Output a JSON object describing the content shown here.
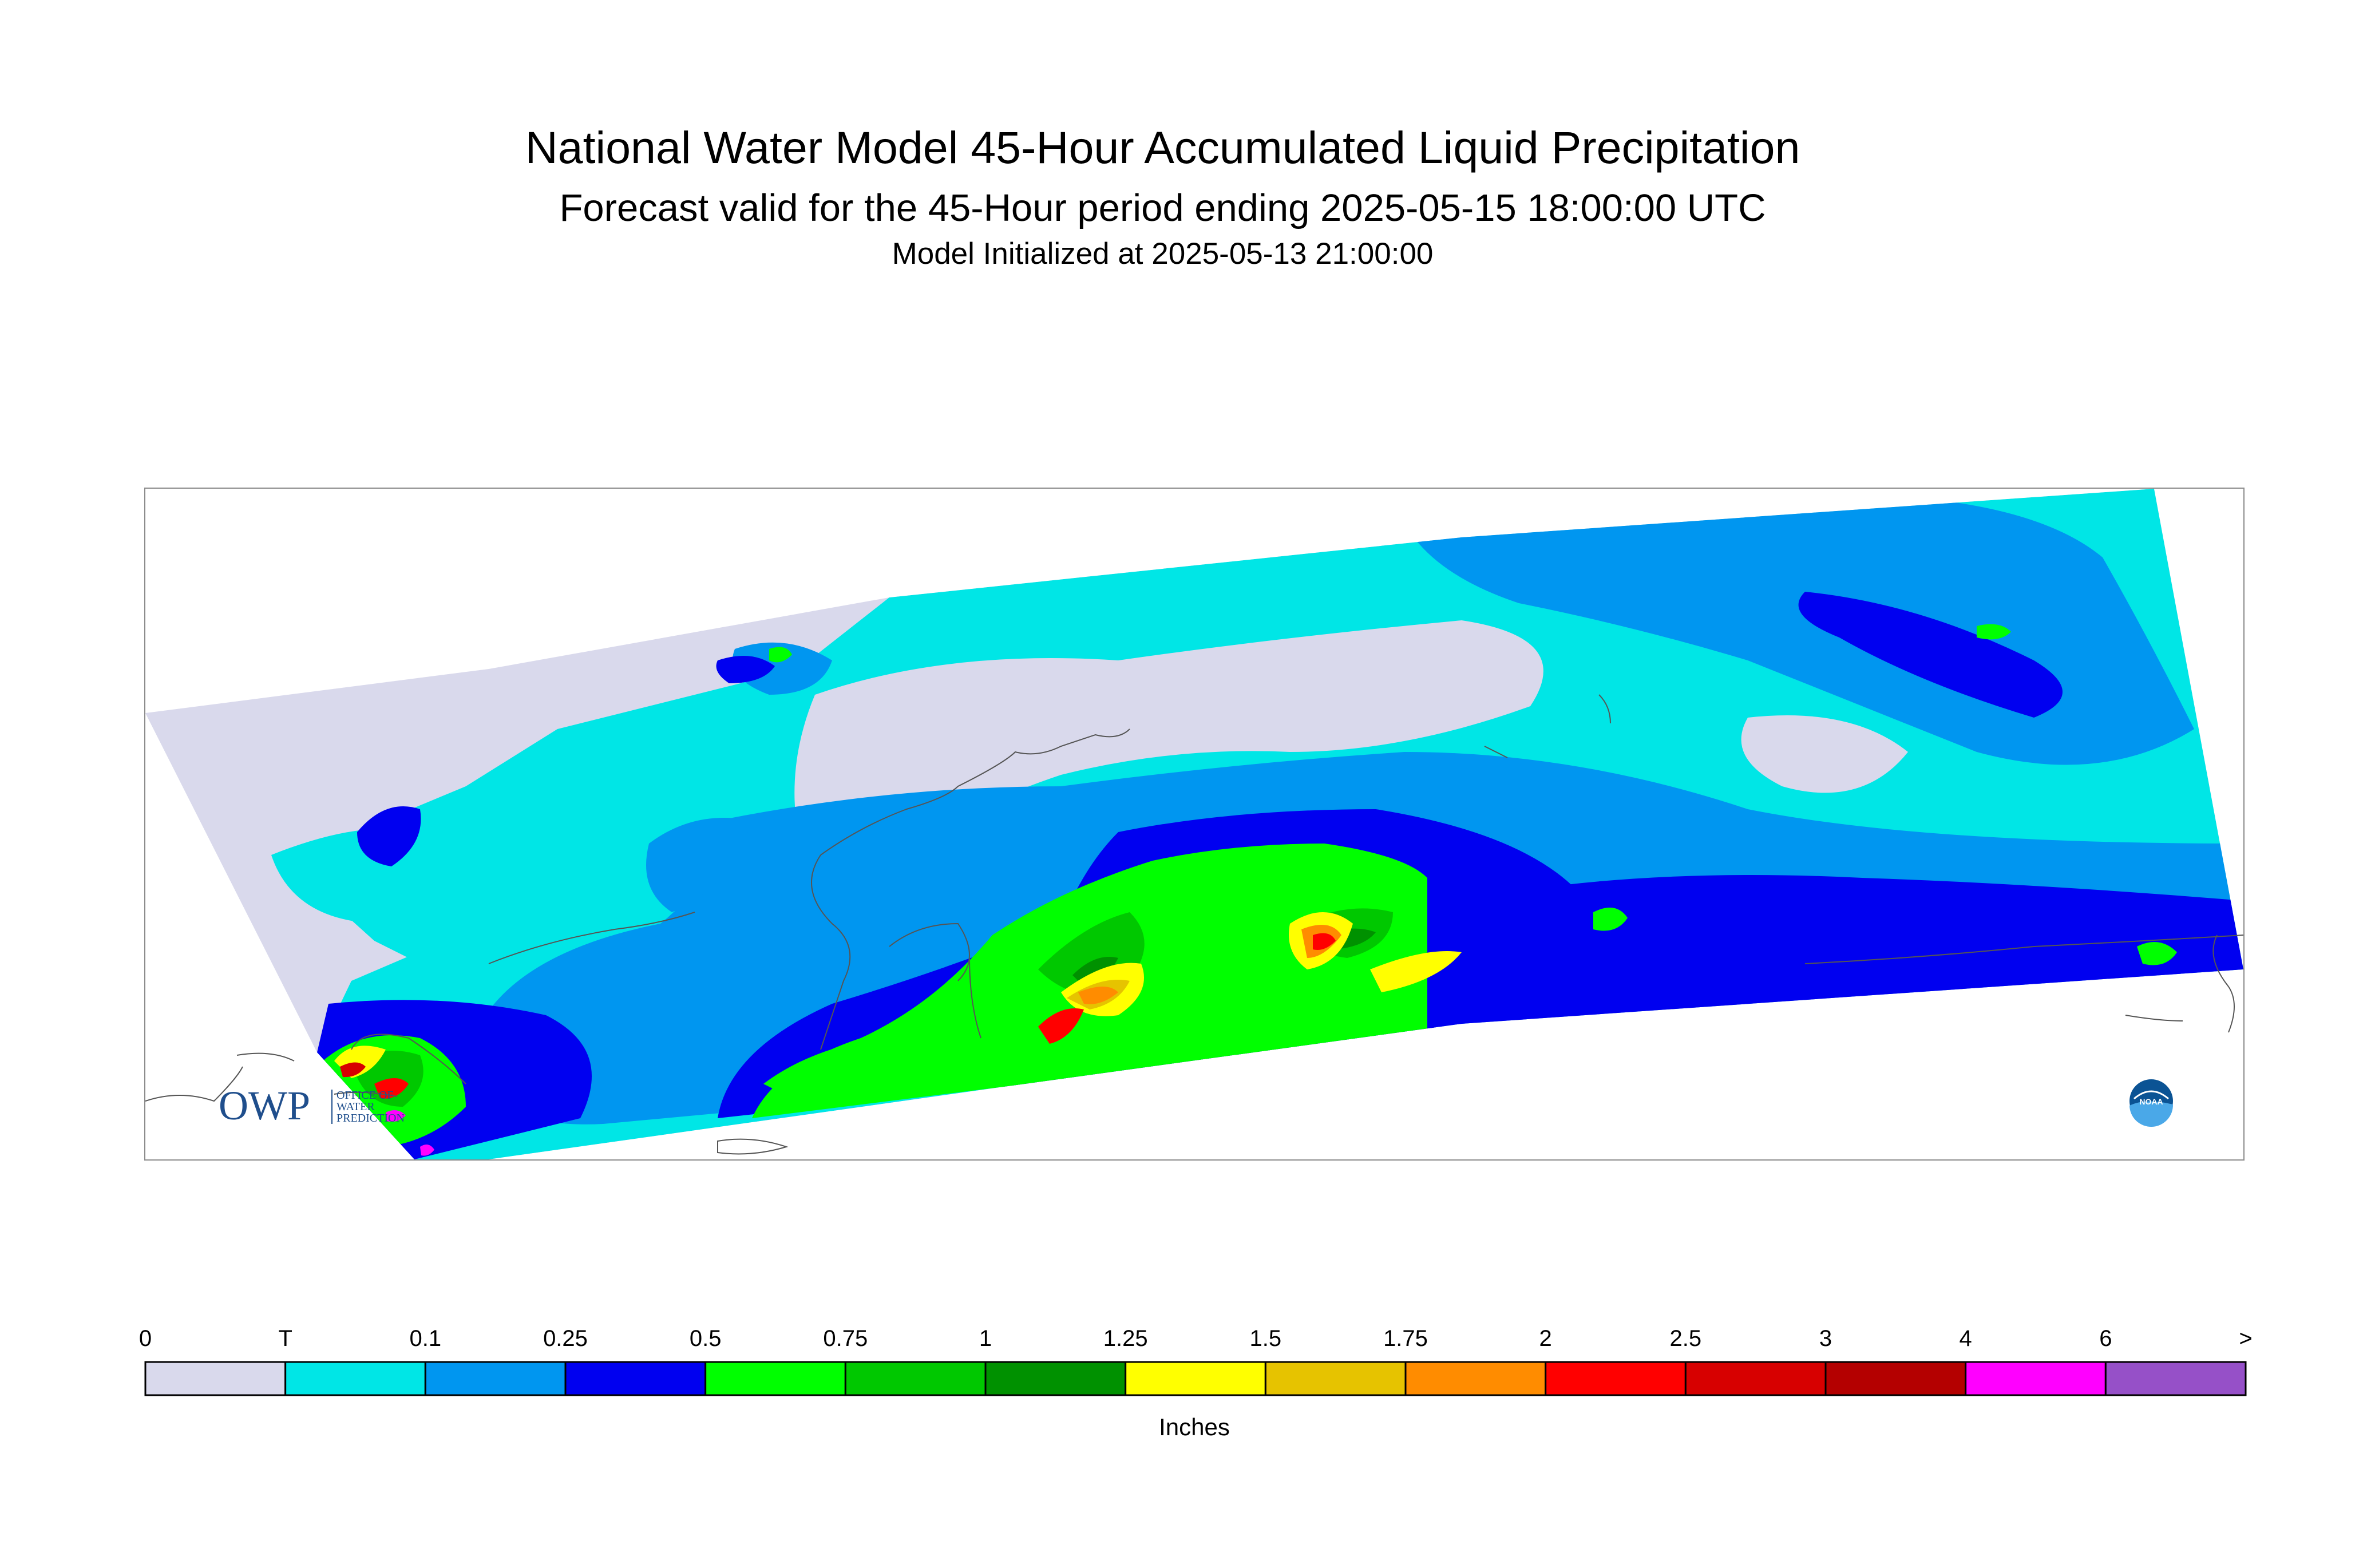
{
  "header": {
    "title": "National Water Model 45-Hour Accumulated Liquid Precipitation",
    "subtitle": "Forecast valid for the 45-Hour period ending 2025-05-15 18:00:00 UTC",
    "init": "Model Initialized at 2025-05-13 21:00:00"
  },
  "logos": {
    "owp_mark": "OWP",
    "owp_text": [
      "OFFICE OF",
      "WATER",
      "PREDICTION"
    ],
    "noaa_mark": "NOAA"
  },
  "map": {
    "coverage_color": "#d9d9ec",
    "coastline_color": "#555555",
    "frame_color": "#8c8c8c"
  },
  "legend": {
    "unit": "Inches",
    "breaks": [
      "0",
      "T",
      "0.1",
      "0.25",
      "0.5",
      "0.75",
      "1",
      "1.25",
      "1.5",
      "1.75",
      "2",
      "2.5",
      "3",
      "4",
      "6",
      ">"
    ],
    "colors": [
      "#d9d9ec",
      "#00e6e6",
      "#0096f0",
      "#0000f0",
      "#00ff00",
      "#00c800",
      "#009100",
      "#ffff00",
      "#e6c300",
      "#ff8c00",
      "#ff0000",
      "#d70000",
      "#b40000",
      "#ff00ff",
      "#9650c8"
    ]
  }
}
